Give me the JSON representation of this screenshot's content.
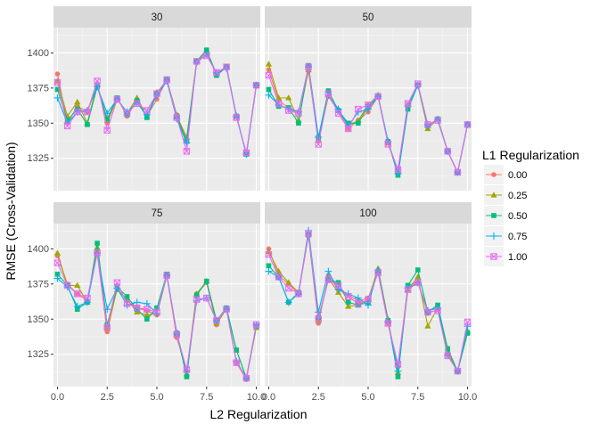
{
  "chart_data": {
    "type": "line",
    "xlabel": "L2 Regularization",
    "ylabel": "RMSE (Cross-Validation)",
    "legend": {
      "title": "L1 Regularization",
      "placement": "right",
      "entries": [
        "0.00",
        "0.25",
        "0.50",
        "0.75",
        "1.00"
      ]
    },
    "facet_labels": [
      "30",
      "50",
      "75",
      "100"
    ],
    "xlim": [
      -0.2,
      10.2
    ],
    "ylim": [
      1302,
      1418
    ],
    "x_ticks": [
      0,
      2.5,
      5,
      7.5,
      10
    ],
    "x_tick_labels": [
      "0.0",
      "2.5",
      "5.0",
      "7.5",
      "10.0"
    ],
    "y_ticks": [
      1325,
      1350,
      1375,
      1400
    ],
    "y_tick_labels": [
      "1325",
      "1350",
      "1375",
      "1400"
    ],
    "grid": true,
    "x": [
      0,
      0.5,
      1,
      1.5,
      2,
      2.5,
      3,
      3.5,
      4,
      4.5,
      5,
      5.5,
      6,
      6.5,
      7,
      7.5,
      8,
      8.5,
      9,
      9.5,
      10
    ],
    "series_styles": [
      {
        "name": "0.00",
        "color": "#F8766D",
        "shape": "circle"
      },
      {
        "name": "0.25",
        "color": "#A3A500",
        "shape": "triangle"
      },
      {
        "name": "0.50",
        "color": "#00BF7D",
        "shape": "square"
      },
      {
        "name": "0.75",
        "color": "#00B0F6",
        "shape": "plus"
      },
      {
        "name": "1.00",
        "color": "#E76BF3",
        "shape": "boxcross"
      }
    ],
    "panels": [
      {
        "label": "30",
        "series": [
          {
            "name": "0.00",
            "values": [
              1385,
              1350,
              1362,
              1358,
              1377,
              1350,
              1368,
              1355,
              1366,
              1355,
              1367,
              1381,
              1356,
              1338,
              1393,
              1401,
              1384,
              1390,
              1355,
              1328,
              1377
            ]
          },
          {
            "name": "0.25",
            "values": [
              1380,
              1355,
              1365,
              1350,
              1378,
              1352,
              1367,
              1357,
              1368,
              1355,
              1372,
              1380,
              1355,
              1340,
              1394,
              1402,
              1385,
              1390,
              1355,
              1328,
              1377
            ]
          },
          {
            "name": "0.50",
            "values": [
              1374,
              1352,
              1360,
              1349,
              1376,
              1353,
              1368,
              1356,
              1366,
              1354,
              1371,
              1381,
              1355,
              1337,
              1394,
              1402,
              1384,
              1390,
              1355,
              1328,
              1377
            ]
          },
          {
            "name": "0.75",
            "values": [
              1368,
              1350,
              1358,
              1359,
              1376,
              1357,
              1367,
              1358,
              1364,
              1356,
              1370,
              1380,
              1353,
              1336,
              1393,
              1399,
              1386,
              1389,
              1355,
              1328,
              1377
            ]
          },
          {
            "name": "1.00",
            "values": [
              1379,
              1348,
              1358,
              1358,
              1380,
              1345,
              1367,
              1357,
              1364,
              1359,
              1371,
              1381,
              1354,
              1330,
              1394,
              1398,
              1386,
              1390,
              1354,
              1329,
              1377
            ]
          }
        ]
      },
      {
        "label": "50",
        "series": [
          {
            "name": "0.00",
            "values": [
              1388,
              1366,
              1361,
              1358,
              1387,
              1338,
              1369,
              1359,
              1346,
              1352,
              1358,
              1369,
              1336,
              1317,
              1363,
              1377,
              1348,
              1353,
              1330,
              1315,
              1349
            ]
          },
          {
            "name": "0.25",
            "values": [
              1392,
              1368,
              1368,
              1352,
              1388,
              1338,
              1370,
              1360,
              1348,
              1352,
              1363,
              1370,
              1336,
              1316,
              1363,
              1377,
              1346,
              1353,
              1330,
              1315,
              1349
            ]
          },
          {
            "name": "0.50",
            "values": [
              1374,
              1362,
              1361,
              1350,
              1391,
              1340,
              1373,
              1359,
              1350,
              1350,
              1362,
              1369,
              1337,
              1313,
              1360,
              1377,
              1348,
              1353,
              1330,
              1315,
              1349
            ]
          },
          {
            "name": "0.75",
            "values": [
              1370,
              1363,
              1360,
              1358,
              1390,
              1340,
              1370,
              1360,
              1348,
              1358,
              1360,
              1369,
              1337,
              1314,
              1362,
              1377,
              1349,
              1352,
              1330,
              1315,
              1349
            ]
          },
          {
            "name": "1.00",
            "values": [
              1384,
              1364,
              1359,
              1357,
              1390,
              1335,
              1371,
              1357,
              1346,
              1360,
              1363,
              1369,
              1335,
              1317,
              1364,
              1378,
              1349,
              1352,
              1330,
              1315,
              1349
            ]
          }
        ]
      },
      {
        "label": "75",
        "series": [
          {
            "name": "0.00",
            "values": [
              1395,
              1375,
              1368,
              1363,
              1397,
              1341,
              1372,
              1363,
              1358,
              1356,
              1353,
              1381,
              1337,
              1313,
              1368,
              1376,
              1346,
              1358,
              1319,
              1307,
              1345
            ]
          },
          {
            "name": "0.25",
            "values": [
              1397,
              1374,
              1374,
              1362,
              1401,
              1344,
              1371,
              1364,
              1355,
              1353,
              1354,
              1381,
              1339,
              1311,
              1368,
              1377,
              1347,
              1357,
              1328,
              1308,
              1344
            ]
          },
          {
            "name": "0.50",
            "values": [
              1382,
              1374,
              1357,
              1362,
              1404,
              1346,
              1373,
              1366,
              1357,
              1350,
              1358,
              1382,
              1340,
              1309,
              1367,
              1377,
              1349,
              1358,
              1328,
              1308,
              1345
            ]
          },
          {
            "name": "0.75",
            "values": [
              1379,
              1373,
              1359,
              1362,
              1397,
              1357,
              1372,
              1360,
              1362,
              1361,
              1354,
              1381,
              1340,
              1313,
              1363,
              1365,
              1349,
              1357,
              1320,
              1308,
              1346
            ]
          },
          {
            "name": "1.00",
            "values": [
              1390,
              1374,
              1368,
              1365,
              1397,
              1344,
              1376,
              1361,
              1358,
              1357,
              1355,
              1381,
              1339,
              1314,
              1364,
              1365,
              1349,
              1357,
              1319,
              1308,
              1346
            ]
          }
        ]
      },
      {
        "label": "100",
        "series": [
          {
            "name": "0.00",
            "values": [
              1400,
              1381,
              1375,
              1368,
              1410,
              1347,
              1381,
              1371,
              1367,
              1363,
              1365,
              1383,
              1347,
              1316,
              1374,
              1376,
              1354,
              1357,
              1327,
              1313,
              1341
            ]
          },
          {
            "name": "0.25",
            "values": [
              1398,
              1384,
              1376,
              1369,
              1410,
              1349,
              1379,
              1369,
              1359,
              1360,
              1364,
              1386,
              1350,
              1312,
              1371,
              1380,
              1345,
              1358,
              1326,
              1313,
              1341
            ]
          },
          {
            "name": "0.50",
            "values": [
              1388,
              1380,
              1362,
              1369,
              1410,
              1351,
              1378,
              1376,
              1362,
              1360,
              1362,
              1384,
              1349,
              1309,
              1374,
              1385,
              1355,
              1360,
              1329,
              1313,
              1340
            ]
          },
          {
            "name": "0.75",
            "values": [
              1384,
              1380,
              1362,
              1368,
              1413,
              1355,
              1384,
              1371,
              1368,
              1365,
              1360,
              1385,
              1348,
              1313,
              1372,
              1376,
              1356,
              1358,
              1324,
              1313,
              1345
            ]
          },
          {
            "name": "1.00",
            "values": [
              1396,
              1380,
              1372,
              1368,
              1411,
              1350,
              1378,
              1374,
              1366,
              1361,
              1364,
              1383,
              1347,
              1318,
              1371,
              1376,
              1355,
              1356,
              1324,
              1313,
              1348
            ]
          }
        ]
      }
    ]
  }
}
